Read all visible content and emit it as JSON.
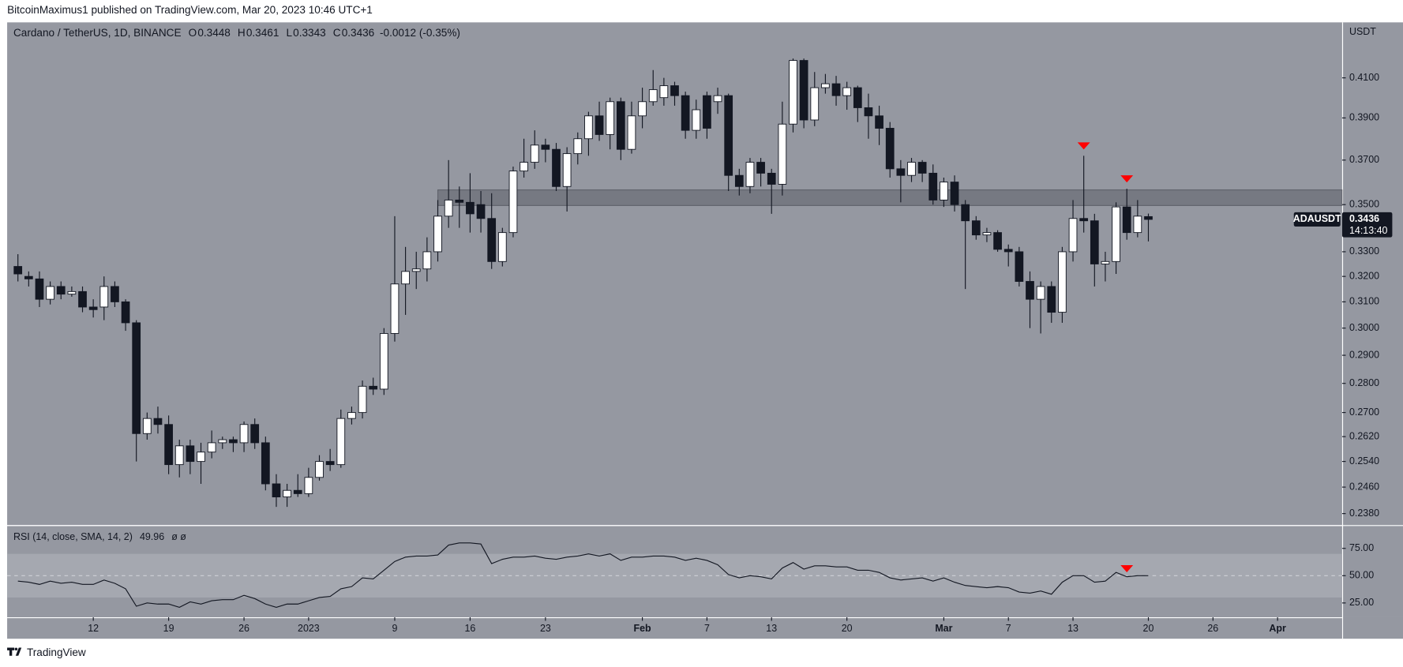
{
  "header": "BitcoinMaximus1 published on TradingView.com, Mar 20, 2023 10:46 UTC+1",
  "footer": "TradingView",
  "chart_data": [
    {
      "type": "candlestick",
      "title": "Cardano / TetherUS, 1D, BINANCE",
      "legend_values": [
        {
          "key": "O",
          "text": "0.3448"
        },
        {
          "key": "H",
          "text": "0.3461"
        },
        {
          "key": "L",
          "text": "0.3343"
        },
        {
          "key": "C",
          "text": "0.3436"
        }
      ],
      "change_text": "-0.0012 (-0.35%)",
      "axis_label": "USDT",
      "symbol": "ADAUSDT",
      "last_price_text": "0.3436",
      "countdown": "14:13:40",
      "x": [
        "2022-12-05",
        "2022-12-06",
        "2022-12-07",
        "2022-12-08",
        "2022-12-09",
        "2022-12-10",
        "2022-12-11",
        "2022-12-12",
        "2022-12-13",
        "2022-12-14",
        "2022-12-15",
        "2022-12-16",
        "2022-12-17",
        "2022-12-18",
        "2022-12-19",
        "2022-12-20",
        "2022-12-21",
        "2022-12-22",
        "2022-12-23",
        "2022-12-24",
        "2022-12-25",
        "2022-12-26",
        "2022-12-27",
        "2022-12-28",
        "2022-12-29",
        "2022-12-30",
        "2022-12-31",
        "2023-01-01",
        "2023-01-02",
        "2023-01-03",
        "2023-01-04",
        "2023-01-05",
        "2023-01-06",
        "2023-01-07",
        "2023-01-08",
        "2023-01-09",
        "2023-01-10",
        "2023-01-11",
        "2023-01-12",
        "2023-01-13",
        "2023-01-14",
        "2023-01-15",
        "2023-01-16",
        "2023-01-17",
        "2023-01-18",
        "2023-01-19",
        "2023-01-20",
        "2023-01-21",
        "2023-01-22",
        "2023-01-23",
        "2023-01-24",
        "2023-01-25",
        "2023-01-26",
        "2023-01-27",
        "2023-01-28",
        "2023-01-29",
        "2023-01-30",
        "2023-01-31",
        "2023-02-01",
        "2023-02-02",
        "2023-02-03",
        "2023-02-04",
        "2023-02-05",
        "2023-02-06",
        "2023-02-07",
        "2023-02-08",
        "2023-02-09",
        "2023-02-10",
        "2023-02-11",
        "2023-02-12",
        "2023-02-13",
        "2023-02-14",
        "2023-02-15",
        "2023-02-16",
        "2023-02-17",
        "2023-02-18",
        "2023-02-19",
        "2023-02-20",
        "2023-02-21",
        "2023-02-22",
        "2023-02-23",
        "2023-02-24",
        "2023-02-25",
        "2023-02-26",
        "2023-02-27",
        "2023-02-28",
        "2023-03-01",
        "2023-03-02",
        "2023-03-03",
        "2023-03-04",
        "2023-03-05",
        "2023-03-06",
        "2023-03-07",
        "2023-03-08",
        "2023-03-09",
        "2023-03-10",
        "2023-03-11",
        "2023-03-12",
        "2023-03-13",
        "2023-03-14",
        "2023-03-15",
        "2023-03-16",
        "2023-03-17",
        "2023-03-18",
        "2023-03-19",
        "2023-03-20"
      ],
      "open": [
        0.324,
        0.32,
        0.319,
        0.311,
        0.316,
        0.313,
        0.314,
        0.308,
        0.308,
        0.316,
        0.31,
        0.302,
        0.263,
        0.268,
        0.266,
        0.253,
        0.259,
        0.254,
        0.257,
        0.26,
        0.261,
        0.26,
        0.266,
        0.26,
        0.247,
        0.243,
        0.245,
        0.244,
        0.249,
        0.254,
        0.253,
        0.268,
        0.27,
        0.279,
        0.278,
        0.298,
        0.317,
        0.322,
        0.323,
        0.33,
        0.345,
        0.352,
        0.351,
        0.35,
        0.344,
        0.326,
        0.338,
        0.365,
        0.369,
        0.377,
        0.375,
        0.358,
        0.373,
        0.38,
        0.391,
        0.382,
        0.398,
        0.375,
        0.391,
        0.398,
        0.4,
        0.406,
        0.401,
        0.384,
        0.401,
        0.398,
        0.401,
        0.363,
        0.358,
        0.369,
        0.364,
        0.359,
        0.387,
        0.419,
        0.389,
        0.405,
        0.407,
        0.401,
        0.405,
        0.395,
        0.391,
        0.385,
        0.366,
        0.363,
        0.369,
        0.364,
        0.352,
        0.36,
        0.35,
        0.343,
        0.337,
        0.338,
        0.331,
        0.33,
        0.318,
        0.311,
        0.316,
        0.306,
        0.33,
        0.344,
        0.343,
        0.325,
        0.326,
        0.349,
        0.338,
        0.3448
      ],
      "high": [
        0.329,
        0.322,
        0.322,
        0.318,
        0.318,
        0.316,
        0.316,
        0.311,
        0.32,
        0.318,
        0.311,
        0.303,
        0.27,
        0.272,
        0.269,
        0.261,
        0.261,
        0.26,
        0.264,
        0.262,
        0.262,
        0.267,
        0.268,
        0.262,
        0.25,
        0.247,
        0.25,
        0.252,
        0.256,
        0.258,
        0.271,
        0.272,
        0.281,
        0.282,
        0.3,
        0.345,
        0.332,
        0.33,
        0.336,
        0.352,
        0.37,
        0.358,
        0.364,
        0.356,
        0.355,
        0.34,
        0.367,
        0.38,
        0.384,
        0.38,
        0.378,
        0.376,
        0.383,
        0.393,
        0.398,
        0.4,
        0.4,
        0.398,
        0.405,
        0.414,
        0.41,
        0.408,
        0.403,
        0.399,
        0.403,
        0.405,
        0.402,
        0.366,
        0.371,
        0.371,
        0.366,
        0.398,
        0.42,
        0.42,
        0.413,
        0.412,
        0.411,
        0.408,
        0.406,
        0.402,
        0.396,
        0.388,
        0.37,
        0.371,
        0.37,
        0.368,
        0.362,
        0.363,
        0.352,
        0.345,
        0.34,
        0.339,
        0.333,
        0.332,
        0.322,
        0.318,
        0.318,
        0.332,
        0.352,
        0.372,
        0.346,
        0.33,
        0.351,
        0.357,
        0.352,
        0.3461
      ],
      "low": [
        0.318,
        0.316,
        0.308,
        0.309,
        0.311,
        0.312,
        0.306,
        0.304,
        0.303,
        0.308,
        0.299,
        0.254,
        0.261,
        0.263,
        0.25,
        0.249,
        0.25,
        0.247,
        0.255,
        0.258,
        0.257,
        0.257,
        0.258,
        0.245,
        0.24,
        0.24,
        0.243,
        0.243,
        0.248,
        0.251,
        0.252,
        0.266,
        0.268,
        0.276,
        0.276,
        0.295,
        0.305,
        0.315,
        0.318,
        0.326,
        0.34,
        0.34,
        0.338,
        0.338,
        0.323,
        0.324,
        0.336,
        0.362,
        0.366,
        0.369,
        0.356,
        0.347,
        0.368,
        0.372,
        0.379,
        0.375,
        0.37,
        0.373,
        0.385,
        0.396,
        0.396,
        0.396,
        0.38,
        0.38,
        0.38,
        0.392,
        0.356,
        0.354,
        0.355,
        0.358,
        0.346,
        0.354,
        0.383,
        0.385,
        0.386,
        0.402,
        0.396,
        0.394,
        0.388,
        0.38,
        0.377,
        0.362,
        0.351,
        0.36,
        0.36,
        0.35,
        0.349,
        0.347,
        0.315,
        0.335,
        0.334,
        0.33,
        0.324,
        0.316,
        0.3,
        0.298,
        0.302,
        0.302,
        0.326,
        0.338,
        0.316,
        0.318,
        0.321,
        0.335,
        0.336,
        0.3343
      ],
      "close": [
        0.321,
        0.319,
        0.311,
        0.316,
        0.313,
        0.314,
        0.308,
        0.307,
        0.316,
        0.31,
        0.302,
        0.263,
        0.268,
        0.266,
        0.253,
        0.259,
        0.254,
        0.257,
        0.26,
        0.261,
        0.26,
        0.266,
        0.26,
        0.247,
        0.243,
        0.245,
        0.244,
        0.249,
        0.254,
        0.253,
        0.268,
        0.27,
        0.279,
        0.278,
        0.298,
        0.317,
        0.322,
        0.323,
        0.33,
        0.345,
        0.352,
        0.351,
        0.346,
        0.344,
        0.326,
        0.338,
        0.365,
        0.369,
        0.377,
        0.375,
        0.358,
        0.373,
        0.38,
        0.391,
        0.382,
        0.398,
        0.375,
        0.391,
        0.398,
        0.404,
        0.406,
        0.401,
        0.384,
        0.394,
        0.385,
        0.401,
        0.363,
        0.358,
        0.369,
        0.364,
        0.359,
        0.387,
        0.419,
        0.389,
        0.405,
        0.407,
        0.401,
        0.405,
        0.395,
        0.391,
        0.385,
        0.366,
        0.363,
        0.369,
        0.364,
        0.352,
        0.36,
        0.35,
        0.343,
        0.337,
        0.338,
        0.331,
        0.33,
        0.318,
        0.311,
        0.316,
        0.306,
        0.33,
        0.344,
        0.343,
        0.325,
        0.326,
        0.349,
        0.338,
        0.345,
        0.3436
      ],
      "up_color": "#ffffff",
      "down_color": "#131722",
      "log_scale": true,
      "ylim": [
        0.2346,
        0.4394
      ],
      "yticks": [
        {
          "value": 0.41,
          "label": "0.4100"
        },
        {
          "value": 0.39,
          "label": "0.3900"
        },
        {
          "value": 0.37,
          "label": "0.3700"
        },
        {
          "value": 0.35,
          "label": "0.3500"
        },
        {
          "value": 0.33,
          "label": "0.3300"
        },
        {
          "value": 0.32,
          "label": "0.3200"
        },
        {
          "value": 0.31,
          "label": "0.3100"
        },
        {
          "value": 0.3,
          "label": "0.3000"
        },
        {
          "value": 0.29,
          "label": "0.2900"
        },
        {
          "value": 0.28,
          "label": "0.2800"
        },
        {
          "value": 0.27,
          "label": "0.2700"
        },
        {
          "value": 0.262,
          "label": "0.2620"
        },
        {
          "value": 0.254,
          "label": "0.2540"
        },
        {
          "value": 0.246,
          "label": "0.2460"
        },
        {
          "value": 0.238,
          "label": "0.2380"
        }
      ],
      "xlim": [
        "2022-12-04",
        "2023-04-07"
      ],
      "xticks": [
        {
          "value": "2022-12-12",
          "label": "12"
        },
        {
          "value": "2022-12-19",
          "label": "19"
        },
        {
          "value": "2022-12-26",
          "label": "26"
        },
        {
          "value": "2023-01-01",
          "label": "2023"
        },
        {
          "value": "2023-01-09",
          "label": "9"
        },
        {
          "value": "2023-01-16",
          "label": "16"
        },
        {
          "value": "2023-01-23",
          "label": "23"
        },
        {
          "value": "2023-02-01",
          "label": "Feb"
        },
        {
          "value": "2023-02-07",
          "label": "7"
        },
        {
          "value": "2023-02-13",
          "label": "13"
        },
        {
          "value": "2023-02-20",
          "label": "20"
        },
        {
          "value": "2023-03-01",
          "label": "Mar"
        },
        {
          "value": "2023-03-07",
          "label": "7"
        },
        {
          "value": "2023-03-13",
          "label": "13"
        },
        {
          "value": "2023-03-20",
          "label": "20"
        },
        {
          "value": "2023-03-26",
          "label": "26"
        },
        {
          "value": "2023-04-01",
          "label": "Apr"
        }
      ],
      "zone": {
        "from": "2023-01-13",
        "low": 0.3496,
        "high": 0.3565
      },
      "markers": [
        "2023-03-14",
        "2023-03-18"
      ],
      "marker_color": "#ff0000"
    },
    {
      "type": "line",
      "title": "RSI (14, close, SMA, 14, 2)",
      "extra_label": "ø ø",
      "values": [
        45,
        44,
        42,
        45,
        43,
        44,
        42,
        42,
        46,
        43,
        38,
        22,
        25,
        24,
        24,
        21,
        26,
        24,
        27,
        28,
        28,
        32,
        29,
        24,
        21,
        24,
        24,
        27,
        30,
        31,
        38,
        40,
        48,
        47,
        55,
        63,
        67,
        68,
        68,
        69,
        78,
        80,
        80,
        79,
        61,
        65,
        67,
        67,
        68,
        66,
        65,
        67,
        68,
        70,
        68,
        70,
        64,
        67,
        67,
        68,
        68,
        67,
        64,
        66,
        64,
        60,
        51,
        48,
        50,
        49,
        47,
        57,
        62,
        56,
        59,
        59,
        58,
        58,
        55,
        55,
        53,
        48,
        46,
        47,
        48,
        45,
        48,
        44,
        41,
        40,
        39,
        40,
        39,
        35,
        34,
        36,
        33,
        44,
        50,
        50,
        44,
        45,
        53,
        49,
        50,
        49.96
      ],
      "color": "#131722",
      "ylim": [
        11.9,
        95.5
      ],
      "yticks": [
        {
          "value": 75,
          "label": "75.00"
        },
        {
          "value": 50,
          "label": "50.00"
        },
        {
          "value": 25,
          "label": "25.00"
        }
      ],
      "band": [
        30,
        70
      ],
      "midline": 50,
      "markers": [
        "2023-03-18"
      ],
      "marker_color": "#ff0000"
    }
  ]
}
